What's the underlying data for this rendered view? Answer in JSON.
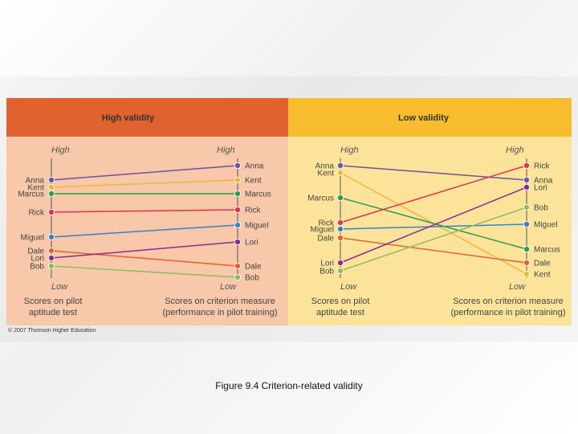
{
  "panels": {
    "high": {
      "title": "High validity",
      "left_names": [
        "Anna",
        "Kent",
        "Marcus",
        "Rick",
        "Miguel",
        "Dale",
        "Lori",
        "Bob"
      ],
      "right_names": [
        "Anna",
        "Kent",
        "Marcus",
        "Rick",
        "Miguel",
        "Lori",
        "Dale",
        "Bob"
      ]
    },
    "low": {
      "title": "Low validity",
      "left_names": [
        "Anna",
        "Kent",
        "Marcus",
        "Rick",
        "Miguel",
        "Dale",
        "Lori",
        "Bob"
      ],
      "right_names": [
        "Rick",
        "Anna",
        "Lori",
        "Bob",
        "Miguel",
        "Marcus",
        "Dale",
        "Kent"
      ]
    }
  },
  "axis": {
    "high_label": "High",
    "low_label": "Low",
    "left_caption": [
      "Scores on pilot",
      "aptitude test"
    ],
    "right_caption": [
      "Scores on criterion measure",
      "(performance in pilot training)"
    ]
  },
  "people_colors": {
    "Anna": "#6a55a0",
    "Kent": "#f0b838",
    "Marcus": "#2e9a4e",
    "Rick": "#e0324e",
    "Miguel": "#3a82c8",
    "Dale": "#e8602e",
    "Lori": "#8c2a8e",
    "Bob": "#90bc5a"
  },
  "copyright": "© 2007 Thomson Higher Education",
  "caption": "Figure 9.4  Criterion-related validity"
}
